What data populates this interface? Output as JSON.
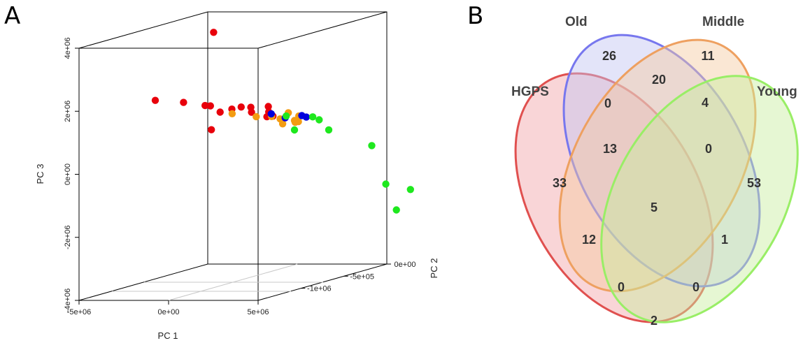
{
  "panels": {
    "a": "A",
    "b": "B"
  },
  "chart_data": [
    {
      "type": "scatter",
      "projection": "3d",
      "xlabel": "PC 1",
      "ylabel": "PC 2",
      "zlabel": "PC 3",
      "x_ticks": [
        "-5e+06",
        "0e+00",
        "5e+06"
      ],
      "y_ticks": [
        "-1e+06",
        "-5e+05",
        "0e+00"
      ],
      "z_ticks": [
        "-4e+06",
        "-2e+06",
        "0e+00",
        "2e+06",
        "4e+06"
      ],
      "colors": {
        "red": "#e8000b",
        "orange": "#f39c12",
        "blue": "#0000dd",
        "green": "#1ee81e"
      },
      "points": [
        {
          "x": 0.0,
          "y": -0.65,
          "z": 4.1,
          "color": "red"
        },
        {
          "x": -2.9,
          "y": -0.7,
          "z": 2.0,
          "color": "red"
        },
        {
          "x": -3.0,
          "y": -0.25,
          "z": 0.55,
          "color": "red"
        },
        {
          "x": -0.6,
          "y": -0.8,
          "z": 2.05,
          "color": "red"
        },
        {
          "x": -0.9,
          "y": -0.55,
          "z": 1.65,
          "color": "red"
        },
        {
          "x": 0.6,
          "y": -0.8,
          "z": 1.95,
          "color": "red"
        },
        {
          "x": 0.3,
          "y": -0.55,
          "z": 1.55,
          "color": "red"
        },
        {
          "x": 0.1,
          "y": -0.45,
          "z": 1.5,
          "color": "red"
        },
        {
          "x": 1.0,
          "y": -0.5,
          "z": 1.55,
          "color": "red"
        },
        {
          "x": 1.8,
          "y": -0.85,
          "z": 1.8,
          "color": "red"
        },
        {
          "x": 1.4,
          "y": -0.55,
          "z": 1.45,
          "color": "red"
        },
        {
          "x": 0.9,
          "y": -0.35,
          "z": 1.4,
          "color": "red"
        },
        {
          "x": 2.0,
          "y": -0.5,
          "z": 1.4,
          "color": "red"
        },
        {
          "x": 1.9,
          "y": -0.5,
          "z": 1.25,
          "color": "red"
        },
        {
          "x": -1.0,
          "y": -0.05,
          "z": 0.75,
          "color": "red"
        },
        {
          "x": -2.2,
          "y": -0.2,
          "z": 1.0,
          "color": "orange"
        },
        {
          "x": -0.5,
          "y": 0.0,
          "z": 0.8,
          "color": "orange"
        },
        {
          "x": 1.2,
          "y": -0.3,
          "z": 0.95,
          "color": "orange"
        },
        {
          "x": 1.3,
          "y": -0.5,
          "z": 1.25,
          "color": "orange"
        },
        {
          "x": 1.8,
          "y": -0.45,
          "z": 1.2,
          "color": "orange"
        },
        {
          "x": 1.5,
          "y": -0.2,
          "z": 0.75,
          "color": "orange"
        },
        {
          "x": 1.7,
          "y": -0.35,
          "z": 0.85,
          "color": "orange"
        },
        {
          "x": 2.0,
          "y": -0.3,
          "z": 0.9,
          "color": "orange"
        },
        {
          "x": 2.4,
          "y": -0.35,
          "z": 0.9,
          "color": "orange"
        },
        {
          "x": 2.6,
          "y": -0.35,
          "z": 1.1,
          "color": "orange"
        },
        {
          "x": 2.5,
          "y": -0.55,
          "z": 1.4,
          "color": "blue"
        },
        {
          "x": 2.2,
          "y": -0.4,
          "z": 1.1,
          "color": "blue"
        },
        {
          "x": 2.3,
          "y": -0.25,
          "z": 0.95,
          "color": "blue"
        },
        {
          "x": 2.05,
          "y": -0.25,
          "z": 1.0,
          "color": "blue"
        },
        {
          "x": 1.9,
          "y": -0.35,
          "z": 1.1,
          "color": "green"
        },
        {
          "x": 2.3,
          "y": -0.2,
          "z": 0.9,
          "color": "green"
        },
        {
          "x": 2.3,
          "y": -0.15,
          "z": 0.75,
          "color": "green"
        },
        {
          "x": 2.0,
          "y": -0.3,
          "z": 0.6,
          "color": "green"
        },
        {
          "x": 1.4,
          "y": 0.05,
          "z": 0.2,
          "color": "green"
        },
        {
          "x": 3.8,
          "y": 0.05,
          "z": -0.3,
          "color": "green"
        },
        {
          "x": 3.15,
          "y": 0.25,
          "z": -1.75,
          "color": "green"
        },
        {
          "x": 5.6,
          "y": 0.1,
          "z": -1.75,
          "color": "green"
        },
        {
          "x": 2.3,
          "y": 0.45,
          "z": -2.8,
          "color": "green"
        }
      ]
    },
    {
      "type": "venn",
      "sets": [
        {
          "name": "HGPS",
          "color": "#e0504f",
          "fill": "#f1a2a6"
        },
        {
          "name": "Old",
          "color": "#7777ee",
          "fill": "#c0c4f2"
        },
        {
          "name": "Middle",
          "color": "#eea060",
          "fill": "#f5c9a0"
        },
        {
          "name": "Young",
          "color": "#99ee66",
          "fill": "#c8ee9e"
        }
      ],
      "regions": [
        {
          "sets": [
            "Old"
          ],
          "count": 26
        },
        {
          "sets": [
            "Middle"
          ],
          "count": 11
        },
        {
          "sets": [
            "Old",
            "Middle"
          ],
          "count": 20
        },
        {
          "sets": [
            "HGPS",
            "Old"
          ],
          "count": 0
        },
        {
          "sets": [
            "Middle",
            "Young"
          ],
          "count": 4
        },
        {
          "sets": [
            "HGPS",
            "Old",
            "Middle"
          ],
          "count": 13
        },
        {
          "sets": [
            "Old",
            "Middle",
            "Young"
          ],
          "count": 0
        },
        {
          "sets": [
            "HGPS"
          ],
          "count": 33
        },
        {
          "sets": [
            "Young"
          ],
          "count": 53
        },
        {
          "sets": [
            "HGPS",
            "Old",
            "Middle",
            "Young"
          ],
          "count": 5
        },
        {
          "sets": [
            "HGPS",
            "Middle"
          ],
          "count": 12
        },
        {
          "sets": [
            "Old",
            "Young"
          ],
          "count": 1
        },
        {
          "sets": [
            "HGPS",
            "Middle",
            "Young"
          ],
          "count": 0
        },
        {
          "sets": [
            "HGPS",
            "Old",
            "Young"
          ],
          "count": 0
        },
        {
          "sets": [
            "HGPS",
            "Young"
          ],
          "count": 2
        }
      ]
    }
  ]
}
